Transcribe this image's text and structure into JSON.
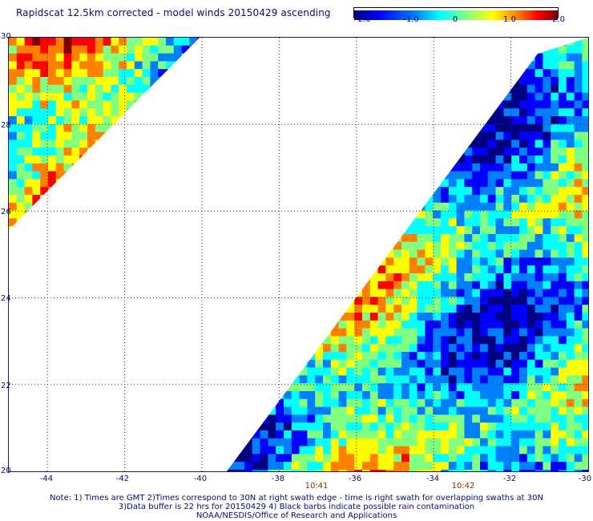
{
  "title": "Rapidscat 12.5km corrected - model winds 20150429 ascending",
  "colorbar": {
    "ticks": [
      "-2.0",
      "-1.0",
      "0",
      "1.0",
      "2.0"
    ],
    "tick_values": [
      -2.0,
      -1.0,
      0,
      1.0,
      2.0
    ],
    "colors": [
      "#000080",
      "#0000ff",
      "#0080ff",
      "#00ffff",
      "#80ff80",
      "#ffff00",
      "#ff8000",
      "#ff0000",
      "#800000"
    ]
  },
  "map": {
    "lat_labels": [
      "30",
      "28",
      "26",
      "24",
      "22",
      "20"
    ],
    "lon_labels": [
      "-44",
      "-42",
      "-40",
      "-38",
      "-36",
      "-34",
      "-32",
      "-30"
    ],
    "time_labels": [
      "10:41",
      "10:42"
    ],
    "lat_range": [
      20,
      30
    ],
    "lon_range": [
      -45,
      -30
    ],
    "swaths": [
      {
        "name": "left",
        "shape": "triangle-top-left",
        "mean_value": 0.2
      },
      {
        "name": "right",
        "shape": "triangle-bottom-right",
        "mean_value": -0.4
      }
    ]
  },
  "notes": [
    "Note: 1) Times are GMT 2)Times correspond to 30N at right swath edge - time is right swath for overlapping swaths at 30N",
    "3)Data buffer is 22 hrs for 20150429 4) Black barbs indicate possible rain contamination",
    "NOAA/NESDIS/Office of Research and Applications"
  ]
}
